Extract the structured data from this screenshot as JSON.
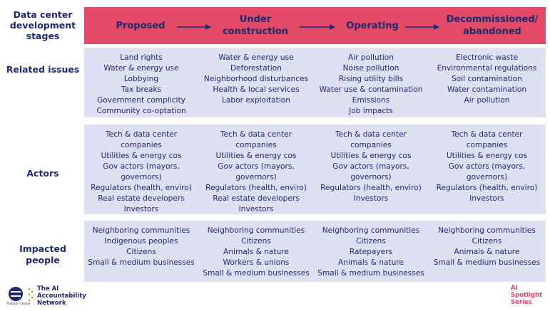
{
  "header": {
    "title": "Data center development stages",
    "stages": [
      "Proposed",
      "Under construction",
      "Operating",
      "Decommissioned/ abandoned"
    ]
  },
  "rows": [
    {
      "label": "Related issues",
      "cells": [
        [
          "Land rights",
          "Water & energy use",
          "Lobbying",
          "Tax breaks",
          "Government complicity",
          "Community co-optation"
        ],
        [
          "Water & energy use",
          "Deforestation",
          "Neighborhood disturbances",
          "Health & local services",
          "Labor exploitation"
        ],
        [
          "Air pollution",
          "Noise pollution",
          "Rising utility bills",
          "Water use & contamination",
          "Emissions",
          "Job impacts"
        ],
        [
          "Electronic waste",
          "Environmental regulations",
          "Soil contamination",
          "Water contamination",
          "Air pollution"
        ]
      ]
    },
    {
      "label": "Actors",
      "cells": [
        [
          "Tech & data center",
          "companies",
          "Utilities & energy cos",
          "Gov actors (mayors,",
          "governors)",
          "Regulators (health, enviro)",
          "Real estate developers",
          "Investors"
        ],
        [
          "Tech & data center",
          "companies",
          "Utilities & energy cos",
          "Gov actors (mayors,",
          "governors)",
          "Regulators (health, enviro)",
          "Real estate developers",
          "Investors"
        ],
        [
          "Tech & data center",
          "companies",
          "Utilities & energy cos",
          "Gov actors (mayors,",
          "governors)",
          "Regulators (health, enviro)",
          "Investors"
        ],
        [
          "Tech & data center",
          "companies",
          "Utilities & energy cos",
          "Gov actors (mayors,",
          "governors)",
          "Regulators (health, enviro)",
          "Investors"
        ]
      ]
    },
    {
      "label": "Impacted people",
      "cells": [
        [
          "Neighboring communities",
          "Indigenous peoples",
          "Citizens",
          "Small & medium businesses"
        ],
        [
          "Neighboring communities",
          "Citizens",
          "Animals & nature",
          "Workers & unions",
          "Small & medium businesses"
        ],
        [
          "Neighboring communities",
          "Citizens",
          "Ratepayers",
          "Animals & nature",
          "Small & medium businesses"
        ],
        [
          "Neighboring communities",
          "Citizens",
          "Animals & nature",
          "Small & medium businesses"
        ]
      ]
    }
  ],
  "footer": {
    "network": "The AI Accountability Network",
    "partner": "Pulitzer Center",
    "series": "AI Spotlight Series"
  }
}
